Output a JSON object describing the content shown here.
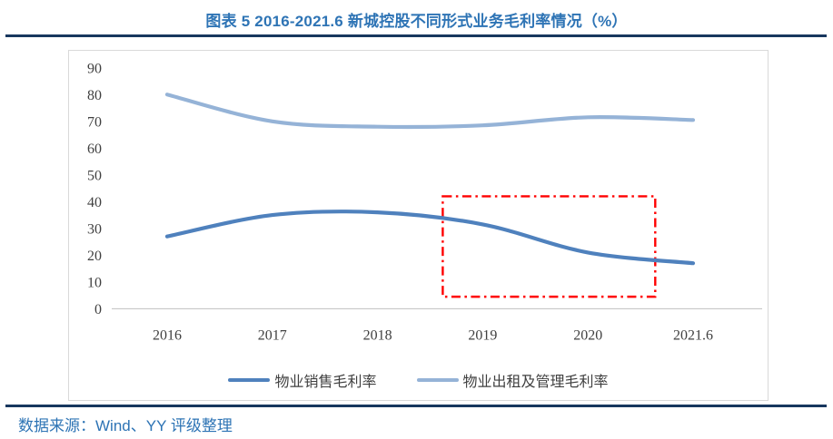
{
  "page": {
    "title": "图表 5 2016-2021.6 新城控股不同形式业务毛利率情况（%）",
    "source_note": "数据来源：Wind、YY 评级整理"
  },
  "colors": {
    "title_blue": "#2E74B5",
    "rule_navy": "#17375E",
    "axis_text": "#404040",
    "chart_border": "#D9D9D9",
    "axis_line": "#BFBFBF",
    "series_sales": "#4F81BD",
    "series_rental": "#95B3D7",
    "highlight_red": "#FF0000"
  },
  "chart_data": {
    "type": "line",
    "title": "",
    "xlabel": "",
    "ylabel": "",
    "categories": [
      "2016",
      "2017",
      "2018",
      "2019",
      "2020",
      "2021.6"
    ],
    "series": [
      {
        "name": "物业销售毛利率",
        "color_key": "series_sales",
        "values": [
          27,
          35,
          36,
          31.5,
          21,
          17
        ]
      },
      {
        "name": "物业出租及管理毛利率",
        "color_key": "series_rental",
        "values": [
          80,
          70,
          68,
          68.5,
          71.5,
          70.5
        ]
      }
    ],
    "ylim": [
      0,
      90
    ],
    "yticks": [
      0,
      10,
      20,
      30,
      40,
      50,
      60,
      70,
      80,
      90
    ],
    "grid": false,
    "line_style": "smooth",
    "legend_position": "bottom",
    "annotation": {
      "type": "dash-dot-rectangle",
      "color_key": "highlight_red",
      "x_from_category_index": 2.62,
      "x_to_category_index": 4.64,
      "y_from": 4.5,
      "y_to": 42
    }
  }
}
